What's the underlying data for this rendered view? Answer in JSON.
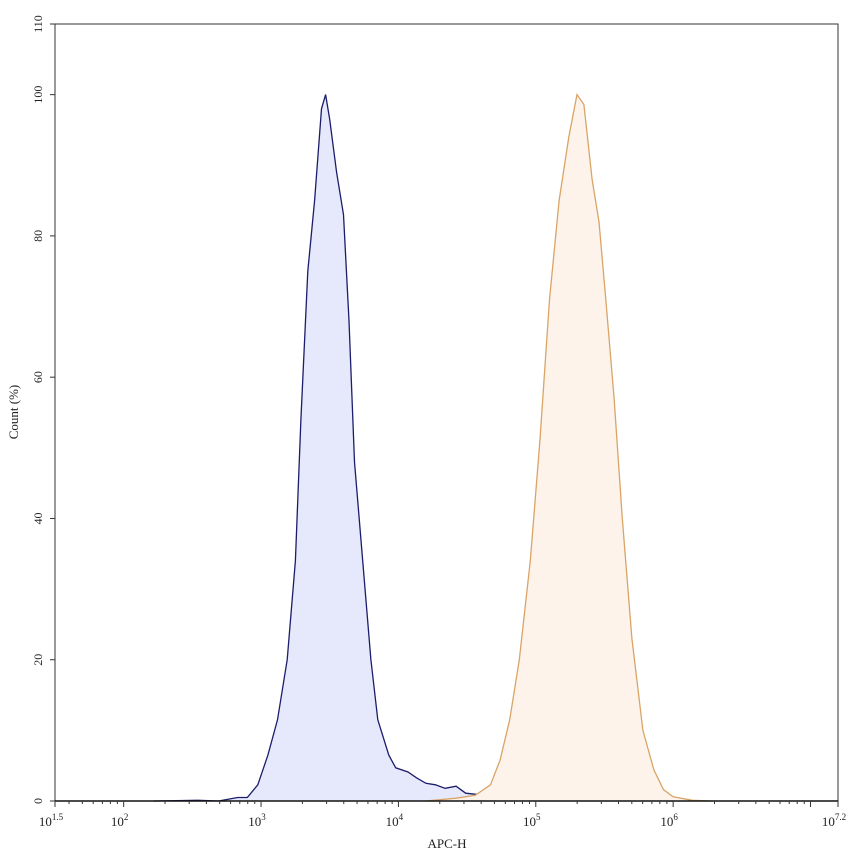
{
  "chart_data": {
    "type": "area",
    "title": "",
    "xlabel": "APC-H",
    "ylabel": "Count (%)",
    "x_scale": "log10",
    "xlim_log10": [
      1.5,
      7.2
    ],
    "ylim": [
      0,
      110
    ],
    "x_tick_labels": [
      {
        "base": "10",
        "exp": "1.5",
        "log": 1.5
      },
      {
        "base": "10",
        "exp": "2",
        "log": 2
      },
      {
        "base": "10",
        "exp": "3",
        "log": 3
      },
      {
        "base": "10",
        "exp": "4",
        "log": 4
      },
      {
        "base": "10",
        "exp": "5",
        "log": 5
      },
      {
        "base": "10",
        "exp": "6",
        "log": 6
      },
      {
        "base": "10",
        "exp": "7.2",
        "log": 7.2
      }
    ],
    "y_ticks": [
      0,
      20,
      40,
      60,
      80,
      100,
      110
    ],
    "grid": false,
    "legend": "none",
    "series": [
      {
        "stroke": "#1c1c6b",
        "fill": "#e6e8fb",
        "points_log10x_count": [
          [
            2.22,
            0
          ],
          [
            2.54,
            0.1
          ],
          [
            2.69,
            0
          ],
          [
            2.83,
            0.5
          ],
          [
            2.9,
            0.5
          ],
          [
            2.976,
            2.3
          ],
          [
            3.05,
            6.5
          ],
          [
            3.12,
            11.5
          ],
          [
            3.19,
            20
          ],
          [
            3.25,
            34
          ],
          [
            3.29,
            54
          ],
          [
            3.34,
            75
          ],
          [
            3.39,
            85
          ],
          [
            3.44,
            98
          ],
          [
            3.47,
            100
          ],
          [
            3.5,
            96.5
          ],
          [
            3.55,
            89
          ],
          [
            3.6,
            83
          ],
          [
            3.64,
            68
          ],
          [
            3.68,
            48
          ],
          [
            3.74,
            34
          ],
          [
            3.8,
            20
          ],
          [
            3.85,
            11.5
          ],
          [
            3.93,
            6.5
          ],
          [
            3.98,
            4.7
          ],
          [
            4.07,
            4.1
          ],
          [
            4.13,
            3.3
          ],
          [
            4.2,
            2.5
          ],
          [
            4.27,
            2.3
          ],
          [
            4.34,
            1.8
          ],
          [
            4.42,
            2.1
          ],
          [
            4.49,
            1.1
          ],
          [
            4.63,
            0.8
          ],
          [
            4.85,
            0.4
          ],
          [
            5.14,
            0.3
          ],
          [
            5.42,
            0.15
          ],
          [
            6.0,
            0
          ]
        ]
      },
      {
        "stroke": "#d9a466",
        "fill": "#fdf3ea",
        "points_log10x_count": [
          [
            4.2,
            0
          ],
          [
            4.42,
            0.4
          ],
          [
            4.56,
            0.8
          ],
          [
            4.67,
            2.3
          ],
          [
            4.74,
            5.8
          ],
          [
            4.81,
            11.5
          ],
          [
            4.88,
            20
          ],
          [
            4.96,
            34
          ],
          [
            5.03,
            51
          ],
          [
            5.1,
            71
          ],
          [
            5.17,
            85
          ],
          [
            5.24,
            94
          ],
          [
            5.3,
            100
          ],
          [
            5.35,
            98.6
          ],
          [
            5.41,
            88
          ],
          [
            5.46,
            82
          ],
          [
            5.51,
            71
          ],
          [
            5.57,
            57
          ],
          [
            5.63,
            40
          ],
          [
            5.7,
            23
          ],
          [
            5.78,
            10
          ],
          [
            5.86,
            4.4
          ],
          [
            5.93,
            1.6
          ],
          [
            6.0,
            0.6
          ],
          [
            6.14,
            0.1
          ],
          [
            6.28,
            0
          ]
        ]
      }
    ]
  }
}
